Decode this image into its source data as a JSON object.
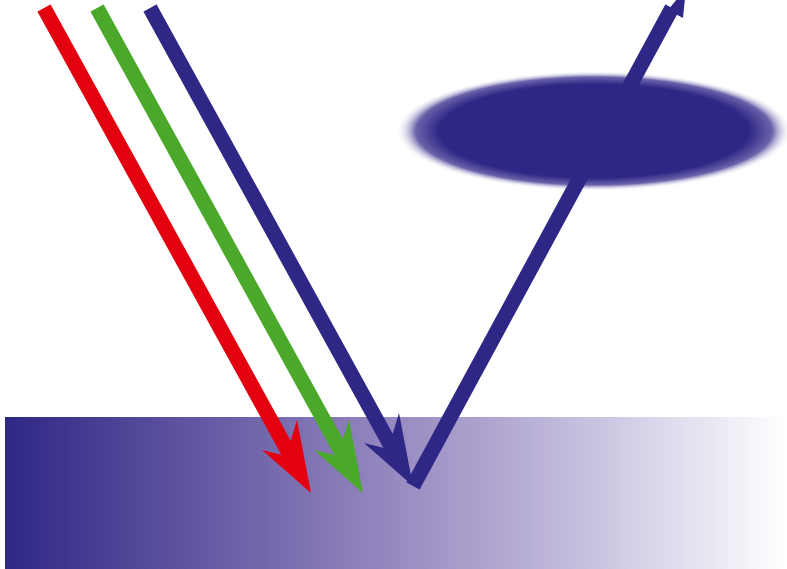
{
  "colors": {
    "background": "#ffffff",
    "red_ray": "#e3000f",
    "green_ray": "#4aa82a",
    "blue_ray": "#2e2785",
    "surface_dark": "#2e2785",
    "surface_light": "#ffffff",
    "absorber": "#2e2785"
  },
  "rays": [
    {
      "name": "red-incident-ray",
      "color_key": "red_ray",
      "kind": "incident"
    },
    {
      "name": "green-incident-ray",
      "color_key": "green_ray",
      "kind": "incident"
    },
    {
      "name": "blue-incident-ray",
      "color_key": "blue_ray",
      "kind": "incident"
    },
    {
      "name": "blue-reflected-ray",
      "color_key": "blue_ray",
      "kind": "reflected"
    }
  ]
}
